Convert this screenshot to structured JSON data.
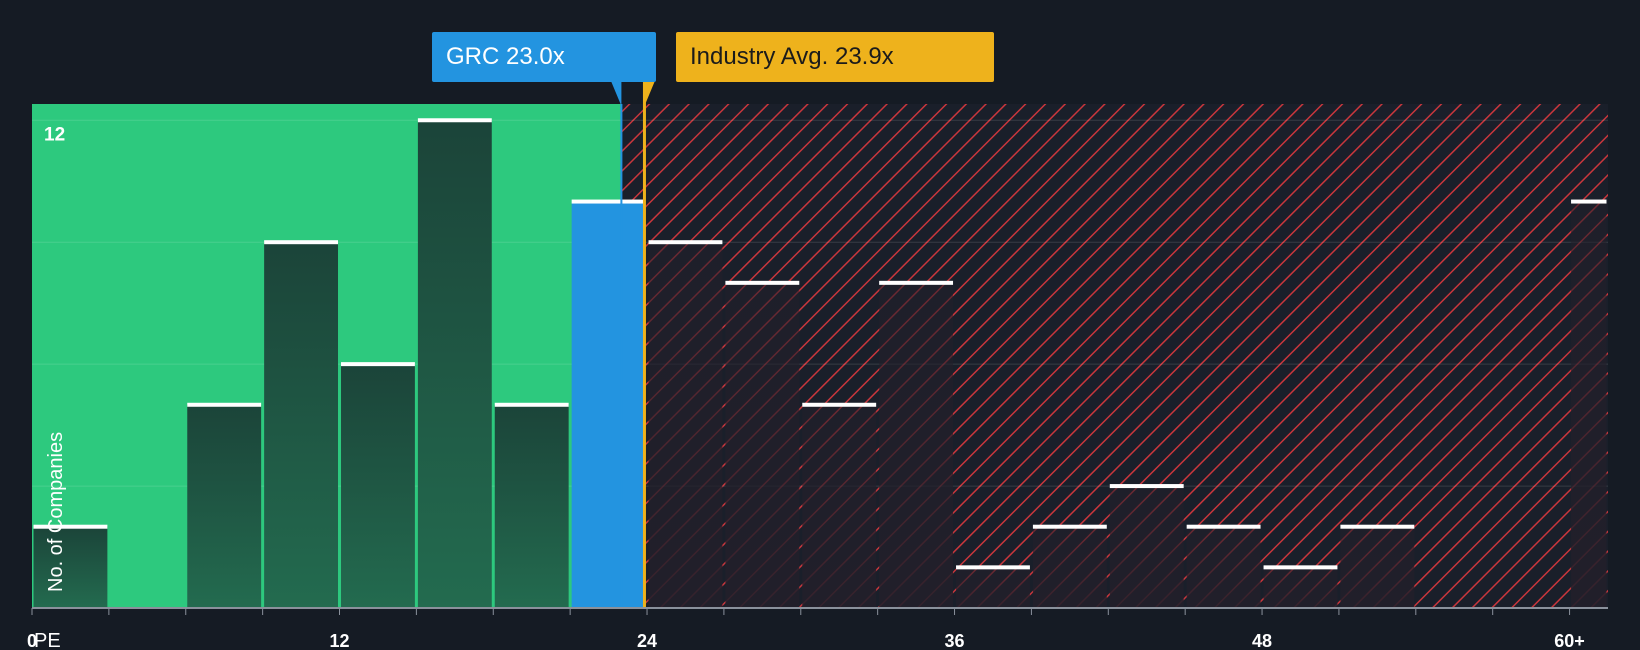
{
  "chart_data": {
    "type": "bar",
    "x_axis_label": "PE",
    "y_axis_label": "No. of Companies",
    "x_ticks": [
      "0",
      "12",
      "24",
      "36",
      "48",
      "60+"
    ],
    "x_tick_values": [
      0,
      12,
      24,
      36,
      48,
      60
    ],
    "y_ticks": [
      "12"
    ],
    "y_tick_values": [
      12
    ],
    "xlim": [
      0,
      61.5
    ],
    "ylim": [
      0,
      12.4
    ],
    "bin_width": 3,
    "bins": [
      {
        "x_start": 0,
        "x_end": 3,
        "count": 2
      },
      {
        "x_start": 3,
        "x_end": 6,
        "count": 0
      },
      {
        "x_start": 6,
        "x_end": 9,
        "count": 5
      },
      {
        "x_start": 9,
        "x_end": 12,
        "count": 9
      },
      {
        "x_start": 12,
        "x_end": 15,
        "count": 6
      },
      {
        "x_start": 15,
        "x_end": 18,
        "count": 12
      },
      {
        "x_start": 18,
        "x_end": 21,
        "count": 5
      },
      {
        "x_start": 21,
        "x_end": 24,
        "count": 10,
        "highlight": true
      },
      {
        "x_start": 24,
        "x_end": 27,
        "count": 9
      },
      {
        "x_start": 27,
        "x_end": 30,
        "count": 8
      },
      {
        "x_start": 30,
        "x_end": 33,
        "count": 5
      },
      {
        "x_start": 33,
        "x_end": 36,
        "count": 8
      },
      {
        "x_start": 36,
        "x_end": 39,
        "count": 1
      },
      {
        "x_start": 39,
        "x_end": 42,
        "count": 2
      },
      {
        "x_start": 42,
        "x_end": 45,
        "count": 3
      },
      {
        "x_start": 45,
        "x_end": 48,
        "count": 2
      },
      {
        "x_start": 48,
        "x_end": 51,
        "count": 1
      },
      {
        "x_start": 51,
        "x_end": 54,
        "count": 2
      },
      {
        "x_start": 54,
        "x_end": 57,
        "count": 0
      },
      {
        "x_start": 57,
        "x_end": 60,
        "count": 0
      },
      {
        "x_start": 60,
        "x_end": 61.5,
        "count": 10
      }
    ],
    "company": {
      "ticker": "GRC",
      "pe": 23.0,
      "label": "GRC 23.0x",
      "color": "#2394e0"
    },
    "industry": {
      "pe": 23.9,
      "label": "Industry Avg. 23.9x",
      "color": "#eeb21c"
    },
    "colors": {
      "background": "#151b24",
      "undervalued_region": "#2dc97e",
      "overvalued_hatch": "#c8363c",
      "bar_fill_dark": "#1b4a3c",
      "bar_cap": "#ffffff"
    },
    "grid": true
  }
}
